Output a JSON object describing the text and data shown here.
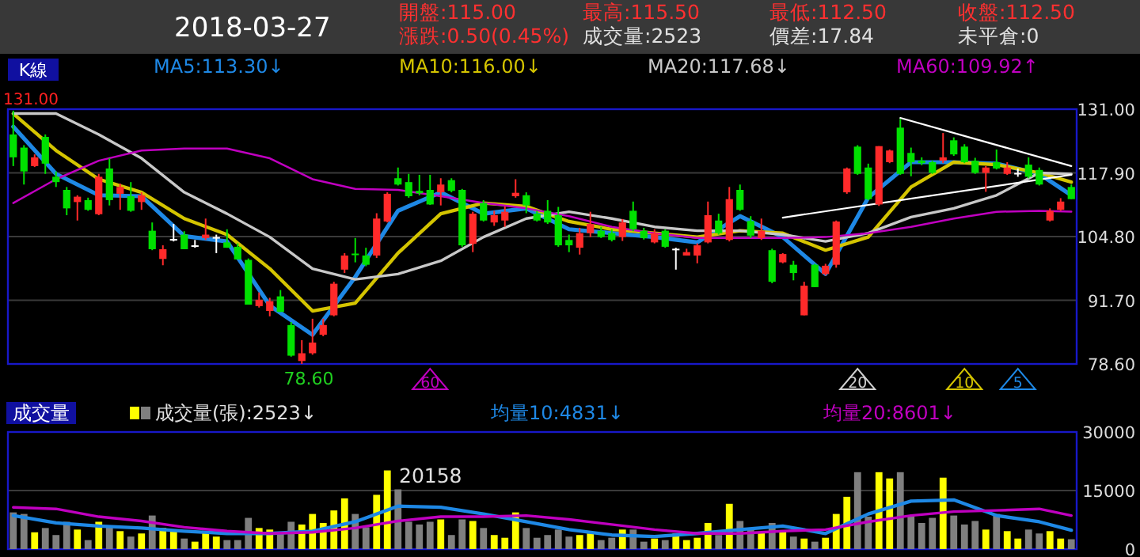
{
  "chart_data": [
    {
      "type": "candlestick",
      "title": "2018-03-27",
      "grid": "y",
      "legend": "top",
      "annotations": [
        "K線",
        "開盤:115.00",
        "最高:115.50",
        "最低:112.50",
        "收盤:112.50",
        "漲跌:0.50(0.45%)",
        "成交量:2523",
        "價差:17.84",
        "未平倉:0",
        {
          "text": "131.00",
          "y": 131
        },
        {
          "text": "78.60",
          "y": 78.6
        },
        "60",
        "20",
        "10",
        "5"
      ],
      "categories": [
        null,
        null,
        null,
        null,
        null,
        null,
        null,
        null,
        null,
        null,
        null,
        null,
        null,
        null,
        null,
        null,
        null,
        null,
        null,
        null,
        null,
        null,
        null,
        null,
        null,
        null,
        null,
        null,
        null,
        null,
        null,
        null,
        null,
        null,
        null,
        null,
        null,
        null,
        null,
        null,
        null,
        null,
        null,
        null,
        null,
        null,
        null,
        null,
        null,
        null,
        null,
        null,
        null,
        null,
        null,
        null,
        null,
        null,
        null,
        null,
        null,
        null,
        null,
        null,
        null,
        null,
        null,
        null,
        null,
        null,
        null,
        null,
        null,
        null,
        null,
        null,
        null,
        null,
        null,
        null,
        null,
        null,
        null,
        null,
        null,
        null,
        null,
        null,
        null,
        null,
        null,
        null,
        null,
        null,
        null,
        null,
        null,
        null,
        null,
        null
      ],
      "ohlc": [
        [
          125.8,
          130.7,
          119.3,
          121.1
        ],
        [
          123.1,
          123.6,
          115.5,
          118.2
        ],
        [
          119.3,
          121.7,
          119.1,
          121.1
        ],
        [
          125.3,
          125.8,
          117.7,
          119.8
        ],
        [
          117.1,
          118.2,
          115.0,
          116.0
        ],
        [
          114.4,
          115.0,
          109.2,
          110.6
        ],
        [
          111.9,
          113.3,
          108.1,
          113.0
        ],
        [
          112.3,
          112.8,
          110.1,
          110.3
        ],
        [
          109.4,
          117.7,
          109.2,
          117.1
        ],
        [
          118.8,
          120.9,
          111.2,
          112.3
        ],
        [
          113.6,
          115.7,
          110.3,
          115.0
        ],
        [
          113.1,
          116.0,
          109.9,
          110.1
        ],
        [
          111.9,
          113.9,
          110.3,
          113.3
        ],
        [
          106.0,
          107.7,
          102.0,
          102.2
        ],
        [
          100.2,
          103.0,
          98.9,
          102.2
        ],
        [
          104.3,
          107.4,
          103.8,
          104.3
        ],
        [
          105.2,
          105.9,
          102.2,
          102.2
        ],
        [
          103.0,
          104.1,
          102.5,
          103.0
        ],
        [
          104.5,
          108.5,
          104.1,
          105.2
        ],
        [
          104.7,
          105.2,
          101.4,
          104.7
        ],
        [
          103.6,
          106.3,
          102.5,
          102.5
        ],
        [
          102.7,
          103.4,
          100.1,
          100.1
        ],
        [
          100.0,
          100.3,
          90.8,
          90.8
        ],
        [
          90.5,
          93.3,
          90.2,
          91.8
        ],
        [
          89.5,
          92.2,
          88.4,
          91.5
        ],
        [
          92.5,
          93.8,
          89.3,
          89.3
        ],
        [
          86.6,
          87.2,
          80.1,
          80.3
        ],
        [
          79.2,
          83.5,
          78.6,
          80.8
        ],
        [
          80.8,
          87.9,
          80.5,
          83.0
        ],
        [
          84.6,
          87.9,
          84.3,
          86.6
        ],
        [
          88.6,
          95.5,
          88.4,
          95.1
        ],
        [
          98.0,
          101.4,
          97.3,
          100.9
        ],
        [
          101.3,
          104.5,
          99.5,
          101.1
        ],
        [
          100.9,
          102.5,
          98.7,
          99.0
        ],
        [
          100.9,
          109.6,
          100.4,
          108.5
        ],
        [
          107.9,
          113.9,
          107.7,
          113.6
        ],
        [
          116.8,
          119.0,
          115.3,
          115.5
        ],
        [
          116.0,
          117.7,
          112.8,
          113.1
        ],
        [
          114.2,
          117.5,
          113.3,
          113.7
        ],
        [
          114.4,
          117.5,
          111.3,
          111.4
        ],
        [
          113.9,
          116.8,
          111.2,
          115.5
        ],
        [
          116.4,
          116.8,
          113.9,
          114.2
        ],
        [
          114.4,
          114.6,
          102.7,
          103.0
        ],
        [
          103.3,
          109.9,
          101.6,
          109.5
        ],
        [
          111.7,
          112.3,
          107.9,
          108.1
        ],
        [
          107.7,
          110.1,
          107.0,
          109.2
        ],
        [
          108.1,
          111.0,
          106.8,
          109.9
        ],
        [
          113.1,
          116.6,
          112.8,
          113.8
        ],
        [
          113.3,
          113.9,
          109.6,
          111.2
        ],
        [
          109.5,
          110.1,
          107.9,
          108.1
        ],
        [
          110.1,
          112.3,
          107.4,
          107.7
        ],
        [
          109.2,
          110.9,
          102.7,
          103.0
        ],
        [
          104.1,
          105.2,
          101.6,
          103.0
        ],
        [
          102.5,
          106.6,
          101.1,
          105.5
        ],
        [
          105.5,
          109.9,
          104.7,
          107.4
        ],
        [
          106.0,
          106.8,
          104.5,
          104.7
        ],
        [
          105.5,
          106.3,
          103.8,
          104.1
        ],
        [
          104.7,
          108.4,
          103.9,
          107.7
        ],
        [
          110.1,
          112.0,
          105.9,
          106.3
        ],
        [
          106.0,
          106.6,
          104.2,
          104.5
        ],
        [
          103.6,
          106.3,
          103.4,
          105.5
        ],
        [
          106.0,
          106.3,
          102.5,
          102.7
        ],
        [
          102.3,
          102.5,
          98.0,
          102.3
        ],
        [
          100.9,
          102.3,
          100.9,
          101.6
        ],
        [
          100.9,
          103.4,
          99.3,
          103.0
        ],
        [
          103.6,
          112.0,
          103.4,
          109.2
        ],
        [
          108.1,
          109.5,
          105.2,
          105.5
        ],
        [
          104.1,
          115.0,
          103.8,
          112.5
        ],
        [
          114.4,
          115.5,
          110.1,
          110.3
        ],
        [
          108.0,
          109.0,
          104.5,
          105.0
        ],
        [
          104.5,
          108.5,
          104.1,
          106.0
        ],
        [
          102.0,
          102.3,
          95.2,
          95.5
        ],
        [
          99.5,
          101.4,
          99.3,
          101.2
        ],
        [
          99.0,
          99.8,
          95.8,
          97.3
        ],
        [
          88.6,
          95.5,
          88.6,
          94.7
        ],
        [
          99.0,
          99.2,
          94.4,
          94.4
        ],
        [
          97.1,
          99.2,
          96.8,
          98.8
        ],
        [
          99.0,
          108.1,
          98.4,
          107.9
        ],
        [
          113.9,
          119.0,
          113.6,
          118.8
        ],
        [
          123.3,
          123.6,
          117.5,
          117.7
        ],
        [
          119.0,
          119.8,
          112.3,
          112.5
        ],
        [
          111.4,
          123.4,
          111.1,
          123.4
        ],
        [
          120.1,
          122.7,
          119.9,
          122.5
        ],
        [
          127.2,
          129.0,
          117.5,
          117.7
        ],
        [
          122.0,
          123.1,
          117.2,
          120.1
        ],
        [
          120.4,
          121.1,
          119.5,
          119.9
        ],
        [
          120.1,
          120.4,
          117.7,
          117.9
        ],
        [
          120.4,
          126.1,
          119.9,
          121.1
        ],
        [
          124.6,
          125.2,
          121.4,
          121.7
        ],
        [
          123.3,
          123.8,
          119.9,
          120.1
        ],
        [
          120.4,
          121.0,
          117.7,
          117.9
        ],
        [
          117.9,
          119.3,
          114.0,
          119.0
        ],
        [
          120.1,
          122.7,
          118.6,
          118.8
        ],
        [
          117.7,
          120.1,
          117.5,
          119.0
        ],
        [
          117.9,
          118.8,
          117.1,
          117.9
        ],
        [
          119.6,
          121.1,
          116.8,
          117.1
        ],
        [
          118.5,
          119.0,
          115.3,
          115.5
        ],
        [
          108.1,
          110.6,
          107.9,
          110.1
        ],
        [
          110.3,
          112.7,
          110.1,
          112.0
        ],
        [
          115.0,
          115.5,
          112.5,
          112.5
        ]
      ],
      "colors": [
        "#00e000",
        "#00e000",
        "#ff2a2a",
        "#00e000",
        "#00e000",
        "#00e000",
        "#ff2a2a",
        "#00e000",
        "#ff2a2a",
        "#00e000",
        "#ff2a2a",
        "#00e000",
        "#ff2a2a",
        "#00e000",
        "#ff2a2a",
        "#ffffff",
        "#00e000",
        "#ffffff",
        "#ff2a2a",
        "#ffffff",
        "#00e000",
        "#00e000",
        "#00e000",
        "#ff2a2a",
        "#ff2a2a",
        "#00e000",
        "#00e000",
        "#ff2a2a",
        "#ff2a2a",
        "#ff2a2a",
        "#ff2a2a",
        "#ff2a2a",
        "#00e000",
        "#00e000",
        "#ff2a2a",
        "#ff2a2a",
        "#00e000",
        "#00e000",
        "#00e000",
        "#00e000",
        "#ff2a2a",
        "#00e000",
        "#00e000",
        "#ff2a2a",
        "#00e000",
        "#ff2a2a",
        "#ff2a2a",
        "#ff2a2a",
        "#00e000",
        "#00e000",
        "#00e000",
        "#00e000",
        "#00e000",
        "#ff2a2a",
        "#ff2a2a",
        "#00e000",
        "#00e000",
        "#ff2a2a",
        "#00e000",
        "#00e000",
        "#ff2a2a",
        "#00e000",
        "#ffffff",
        "#ff2a2a",
        "#ff2a2a",
        "#ff2a2a",
        "#00e000",
        "#ff2a2a",
        "#00e000",
        "#00e000",
        "#ff2a2a",
        "#00e000",
        "#ff2a2a",
        "#00e000",
        "#ff2a2a",
        "#00e000",
        "#ff2a2a",
        "#ff2a2a",
        "#ff2a2a",
        "#00e000",
        "#00e000",
        "#ff2a2a",
        "#ff2a2a",
        "#00e000",
        "#00e000",
        "#00e000",
        "#00e000",
        "#ff2a2a",
        "#00e000",
        "#00e000",
        "#00e000",
        "#ff2a2a",
        "#00e000",
        "#ff2a2a",
        "#ffffff",
        "#00e000",
        "#00e000",
        "#ff2a2a",
        "#ff2a2a",
        "#00e000"
      ],
      "series": [
        {
          "name": "MA5:113.30↓",
          "type": "line",
          "color": "#1e88e5",
          "values": [
            127.4,
            null,
            null,
            null,
            117.7,
            null,
            null,
            null,
            113.3,
            null,
            null,
            null,
            113.1,
            null,
            null,
            null,
            104.9,
            null,
            null,
            null,
            103.8,
            null,
            null,
            null,
            90.6,
            null,
            null,
            null,
            84.6,
            null,
            null,
            null,
            96.5,
            null,
            null,
            null,
            110.1,
            null,
            null,
            null,
            113.9,
            null,
            null,
            null,
            109.5,
            null,
            null,
            null,
            110.6,
            null,
            null,
            null,
            106.3,
            null,
            null,
            null,
            105.5,
            null,
            null,
            null,
            104.7,
            null,
            null,
            null,
            103.6,
            null,
            null,
            null,
            109.0,
            null,
            null,
            null,
            104.7,
            null,
            null,
            null,
            97.1,
            null,
            null,
            null,
            112.8,
            null,
            null,
            null,
            120.1,
            null,
            null,
            null,
            120.1,
            null,
            null,
            null,
            119.8,
            null,
            null,
            null,
            117.7,
            null,
            null,
            113.3
          ]
        },
        {
          "name": "MA10:116.00↓",
          "type": "line",
          "color": "#d4c400",
          "values": [
            130.1,
            null,
            null,
            null,
            122.5,
            null,
            null,
            null,
            116.6,
            null,
            null,
            null,
            113.9,
            null,
            null,
            null,
            108.5,
            null,
            null,
            null,
            105.2,
            null,
            null,
            null,
            98.2,
            null,
            null,
            null,
            89.5,
            null,
            null,
            null,
            91.1,
            null,
            null,
            null,
            101.4,
            null,
            null,
            null,
            109.5,
            null,
            null,
            null,
            111.7,
            null,
            null,
            null,
            111.0,
            null,
            null,
            null,
            107.9,
            null,
            null,
            null,
            106.3,
            null,
            null,
            null,
            105.5,
            null,
            null,
            null,
            104.7,
            null,
            null,
            null,
            106.0,
            null,
            null,
            null,
            105.5,
            null,
            null,
            null,
            102.0,
            null,
            null,
            null,
            104.7,
            null,
            null,
            null,
            115.0,
            null,
            null,
            null,
            120.1,
            null,
            null,
            null,
            119.6,
            null,
            null,
            null,
            117.9,
            null,
            null,
            116.0
          ]
        },
        {
          "name": "MA20:117.68↓",
          "type": "line",
          "color": "#c8c8c8",
          "values": [
            130.1,
            null,
            null,
            null,
            130.1,
            null,
            null,
            null,
            125.8,
            null,
            null,
            null,
            120.9,
            null,
            null,
            null,
            113.9,
            null,
            null,
            null,
            109.5,
            null,
            null,
            null,
            104.7,
            null,
            null,
            null,
            98.2,
            null,
            null,
            null,
            96.0,
            null,
            null,
            null,
            97.1,
            null,
            null,
            null,
            99.8,
            null,
            null,
            null,
            104.7,
            null,
            null,
            null,
            108.5,
            null,
            null,
            null,
            109.9,
            null,
            null,
            null,
            108.5,
            null,
            null,
            null,
            106.8,
            null,
            null,
            null,
            106.0,
            null,
            null,
            null,
            106.0,
            null,
            null,
            null,
            105.2,
            null,
            null,
            null,
            103.8,
            null,
            null,
            null,
            105.5,
            null,
            null,
            null,
            108.8,
            null,
            null,
            null,
            110.6,
            null,
            null,
            null,
            113.3,
            null,
            null,
            null,
            117.9,
            null,
            null,
            117.68
          ]
        },
        {
          "name": "MA60:109.92↑",
          "type": "line",
          "color": "#c000c0",
          "values": [
            111.7,
            null,
            null,
            null,
            116.6,
            null,
            null,
            null,
            120.4,
            null,
            null,
            null,
            122.5,
            null,
            null,
            null,
            122.9,
            null,
            null,
            null,
            122.9,
            null,
            null,
            null,
            120.9,
            null,
            null,
            null,
            116.6,
            null,
            null,
            null,
            114.6,
            null,
            null,
            null,
            114.4,
            null,
            null,
            null,
            113.1,
            null,
            null,
            null,
            111.7,
            null,
            null,
            null,
            110.6,
            null,
            null,
            null,
            109.0,
            null,
            null,
            null,
            106.8,
            null,
            null,
            null,
            105.5,
            null,
            null,
            null,
            104.5,
            null,
            null,
            null,
            104.5,
            null,
            null,
            null,
            104.5,
            null,
            null,
            null,
            104.7,
            null,
            null,
            null,
            105.5,
            null,
            null,
            null,
            106.8,
            null,
            null,
            null,
            108.5,
            null,
            null,
            null,
            109.9,
            null,
            null,
            null,
            110.1,
            null,
            null,
            109.92
          ]
        },
        {
          "type": "line",
          "color": "#ffffff",
          "values": [
            null,
            null,
            null,
            null,
            null,
            null,
            null,
            null,
            null,
            null,
            null,
            null,
            null,
            null,
            null,
            null,
            null,
            null,
            null,
            null,
            null,
            null,
            null,
            null,
            null,
            null,
            null,
            null,
            null,
            null,
            null,
            null,
            null,
            null,
            null,
            null,
            null,
            null,
            null,
            null,
            null,
            null,
            null,
            null,
            null,
            null,
            null,
            null,
            null,
            null,
            null,
            null,
            null,
            null,
            null,
            null,
            null,
            null,
            null,
            null,
            null,
            null,
            null,
            null,
            null,
            null,
            null,
            null,
            null,
            null,
            null,
            null,
            null,
            null,
            null,
            null,
            null,
            null,
            null,
            null,
            null,
            null,
            null,
            129.2,
            null,
            null,
            null,
            null,
            null,
            null,
            null,
            null,
            null,
            null,
            null,
            null,
            null,
            null,
            null,
            119.3
          ]
        },
        {
          "type": "line",
          "color": "#ffffff",
          "values": [
            null,
            null,
            null,
            null,
            null,
            null,
            null,
            null,
            null,
            null,
            null,
            null,
            null,
            null,
            null,
            null,
            null,
            null,
            null,
            null,
            null,
            null,
            null,
            null,
            null,
            null,
            null,
            null,
            null,
            null,
            null,
            null,
            null,
            null,
            null,
            null,
            null,
            null,
            null,
            null,
            null,
            null,
            null,
            null,
            null,
            null,
            null,
            null,
            null,
            null,
            null,
            null,
            null,
            null,
            null,
            null,
            null,
            null,
            null,
            null,
            null,
            null,
            null,
            null,
            null,
            null,
            null,
            null,
            null,
            null,
            null,
            null,
            108.7,
            null,
            null,
            null,
            null,
            null,
            null,
            null,
            null,
            null,
            null,
            null,
            null,
            null,
            null,
            null,
            null,
            null,
            null,
            null,
            null,
            null,
            null,
            null,
            null,
            null,
            null,
            117.5
          ]
        }
      ],
      "ylim": [
        78.6,
        131
      ],
      "yticks": [
        {
          "value": 131,
          "label": "131.00"
        },
        {
          "value": 117.9,
          "label": "117.90"
        },
        {
          "value": 104.8,
          "label": "104.80"
        },
        {
          "value": 91.7,
          "label": "91.70"
        },
        {
          "value": 78.6,
          "label": "78.60"
        }
      ]
    },
    {
      "type": "bar",
      "title": "成交量",
      "grid": "y",
      "legend": "top",
      "annotations": [
        "20158"
      ],
      "categories": [
        null,
        null,
        null,
        null,
        null,
        null,
        null,
        null,
        null,
        null,
        null,
        null,
        null,
        null,
        null,
        null,
        null,
        null,
        null,
        null,
        null,
        null,
        null,
        null,
        null,
        null,
        null,
        null,
        null,
        null,
        null,
        null,
        null,
        null,
        null,
        null,
        null,
        null,
        null,
        null,
        null,
        null,
        null,
        null,
        null,
        null,
        null,
        null,
        null,
        null,
        null,
        null,
        null,
        null,
        null,
        null,
        null,
        null,
        null,
        null,
        null,
        null,
        null,
        null,
        null,
        null,
        null,
        null,
        null,
        null,
        null,
        null,
        null,
        null,
        null,
        null,
        null,
        null,
        null,
        null,
        null,
        null,
        null,
        null,
        null,
        null,
        null,
        null,
        null,
        null,
        null,
        null,
        null,
        null,
        null,
        null,
        null,
        null,
        null,
        null
      ],
      "series": [
        {
          "name": "成交量(張):2523↓",
          "type": "bar",
          "colors": [
            "#7f7f7f",
            "#7f7f7f",
            "#ffff00",
            "#7f7f7f",
            "#7f7f7f",
            "#7f7f7f",
            "#ffff00",
            "#7f7f7f",
            "#ffff00",
            "#7f7f7f",
            "#ffff00",
            "#7f7f7f",
            "#ffff00",
            "#7f7f7f",
            "#ffff00",
            "#ffff00",
            "#7f7f7f",
            "#ffff00",
            "#ffff00",
            "#ffff00",
            "#7f7f7f",
            "#7f7f7f",
            "#7f7f7f",
            "#ffff00",
            "#ffff00",
            "#7f7f7f",
            "#7f7f7f",
            "#ffff00",
            "#ffff00",
            "#ffff00",
            "#ffff00",
            "#ffff00",
            "#7f7f7f",
            "#7f7f7f",
            "#ffff00",
            "#ffff00",
            "#7f7f7f",
            "#7f7f7f",
            "#7f7f7f",
            "#7f7f7f",
            "#ffff00",
            "#7f7f7f",
            "#7f7f7f",
            "#ffff00",
            "#7f7f7f",
            "#ffff00",
            "#ffff00",
            "#ffff00",
            "#7f7f7f",
            "#7f7f7f",
            "#7f7f7f",
            "#7f7f7f",
            "#7f7f7f",
            "#ffff00",
            "#ffff00",
            "#7f7f7f",
            "#7f7f7f",
            "#ffff00",
            "#7f7f7f",
            "#7f7f7f",
            "#ffff00",
            "#7f7f7f",
            "#ffff00",
            "#ffff00",
            "#ffff00",
            "#ffff00",
            "#7f7f7f",
            "#ffff00",
            "#7f7f7f",
            "#7f7f7f",
            "#ffff00",
            "#7f7f7f",
            "#ffff00",
            "#7f7f7f",
            "#ffff00",
            "#7f7f7f",
            "#ffff00",
            "#ffff00",
            "#ffff00",
            "#7f7f7f",
            "#7f7f7f",
            "#ffff00",
            "#ffff00",
            "#7f7f7f",
            "#7f7f7f",
            "#7f7f7f",
            "#7f7f7f",
            "#ffff00",
            "#7f7f7f",
            "#7f7f7f",
            "#7f7f7f",
            "#ffff00",
            "#7f7f7f",
            "#ffff00",
            "#ffff00",
            "#7f7f7f",
            "#7f7f7f",
            "#ffff00",
            "#ffff00",
            "#7f7f7f"
          ],
          "values": [
            9400,
            9000,
            4300,
            5400,
            3600,
            7000,
            5000,
            2300,
            7000,
            5900,
            4600,
            3200,
            4000,
            8600,
            5400,
            5000,
            2700,
            1900,
            4300,
            3200,
            2300,
            2300,
            8000,
            5400,
            5000,
            4000,
            7000,
            6300,
            9000,
            6700,
            9900,
            13000,
            9000,
            5600,
            13900,
            20158,
            15300,
            7000,
            6300,
            7000,
            7600,
            3600,
            7600,
            7200,
            5400,
            3600,
            2900,
            9400,
            5400,
            2900,
            3600,
            5000,
            3200,
            3600,
            4000,
            2300,
            2900,
            5000,
            5000,
            1900,
            2700,
            2300,
            4000,
            2300,
            2900,
            6700,
            3600,
            11600,
            7200,
            5000,
            4300,
            6700,
            4600,
            3200,
            2700,
            1900,
            2900,
            9000,
            13400,
            19700,
            8300,
            19700,
            18100,
            19700,
            8600,
            6700,
            8000,
            18300,
            8600,
            6300,
            7200,
            5000,
            9000,
            4600,
            2700,
            5000,
            4000,
            4600,
            2700,
            2523
          ]
        },
        {
          "name": "均量10:4831↓",
          "type": "line",
          "color": "#1e88e5",
          "values": [
            8600,
            null,
            null,
            null,
            6700,
            null,
            null,
            null,
            5900,
            null,
            null,
            null,
            5400,
            null,
            null,
            null,
            4600,
            null,
            null,
            null,
            4000,
            null,
            null,
            null,
            4000,
            null,
            null,
            null,
            4600,
            null,
            null,
            null,
            7000,
            null,
            null,
            null,
            11000,
            null,
            null,
            null,
            10700,
            null,
            null,
            null,
            9000,
            null,
            null,
            null,
            7000,
            null,
            null,
            null,
            5000,
            null,
            null,
            null,
            3600,
            null,
            null,
            null,
            3200,
            null,
            null,
            null,
            4000,
            null,
            null,
            null,
            5000,
            null,
            null,
            null,
            5900,
            null,
            null,
            null,
            4000,
            null,
            null,
            null,
            9000,
            null,
            null,
            null,
            12300,
            null,
            null,
            null,
            12600,
            null,
            null,
            null,
            8600,
            null,
            null,
            null,
            7000,
            null,
            null,
            4831
          ]
        },
        {
          "name": "均量20:8601↓",
          "type": "line",
          "color": "#c000c0",
          "values": [
            10700,
            null,
            null,
            null,
            10300,
            null,
            null,
            null,
            8300,
            null,
            null,
            null,
            7200,
            null,
            null,
            null,
            5600,
            null,
            null,
            null,
            4600,
            null,
            null,
            null,
            4000,
            null,
            null,
            null,
            4300,
            null,
            null,
            null,
            5400,
            null,
            null,
            null,
            7200,
            null,
            null,
            null,
            8300,
            null,
            null,
            null,
            8300,
            null,
            null,
            null,
            8600,
            null,
            null,
            null,
            7600,
            null,
            null,
            null,
            6300,
            null,
            null,
            null,
            5000,
            null,
            null,
            null,
            4000,
            null,
            null,
            null,
            4000,
            null,
            null,
            null,
            4600,
            null,
            null,
            null,
            5000,
            null,
            null,
            null,
            7000,
            null,
            null,
            null,
            8600,
            null,
            null,
            null,
            9600,
            null,
            null,
            null,
            9900,
            null,
            null,
            null,
            10300,
            null,
            null,
            8601
          ]
        }
      ],
      "ylim": [
        0,
        30000
      ],
      "yticks": [
        0,
        15000,
        30000
      ]
    }
  ]
}
